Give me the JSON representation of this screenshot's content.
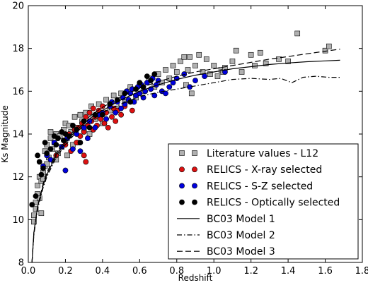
{
  "chart_data": {
    "type": "scatter",
    "xlabel": "Redshift",
    "ylabel": "Ks Magnitude",
    "xlim": [
      0.0,
      1.8
    ],
    "ylim": [
      8,
      20
    ],
    "xticks": [
      "0.0",
      "0.2",
      "0.4",
      "0.6",
      "0.8",
      "1.0",
      "1.2",
      "1.4",
      "1.6",
      "1.8"
    ],
    "yticks": [
      "8",
      "10",
      "12",
      "14",
      "16",
      "18",
      "20"
    ],
    "grid": false,
    "legend_position": "lower-right",
    "series": [
      {
        "name": "Literature values - L12",
        "marker": "square",
        "color": "#b0b0b0",
        "points": [
          [
            0.03,
            10.2
          ],
          [
            0.03,
            9.9
          ],
          [
            0.04,
            10.5
          ],
          [
            0.04,
            10.8
          ],
          [
            0.05,
            11.2
          ],
          [
            0.05,
            11.6
          ],
          [
            0.06,
            11.0
          ],
          [
            0.06,
            12.0
          ],
          [
            0.07,
            10.3
          ],
          [
            0.07,
            11.8
          ],
          [
            0.08,
            12.2
          ],
          [
            0.08,
            11.9
          ],
          [
            0.09,
            12.5
          ],
          [
            0.09,
            13.2
          ],
          [
            0.1,
            12.6
          ],
          [
            0.1,
            13.5
          ],
          [
            0.11,
            12.9
          ],
          [
            0.12,
            13.8
          ],
          [
            0.12,
            14.1
          ],
          [
            0.13,
            13.3
          ],
          [
            0.14,
            13.6
          ],
          [
            0.15,
            12.8
          ],
          [
            0.15,
            14.0
          ],
          [
            0.16,
            13.1
          ],
          [
            0.17,
            13.9
          ],
          [
            0.18,
            13.4
          ],
          [
            0.19,
            14.2
          ],
          [
            0.2,
            13.7
          ],
          [
            0.2,
            14.5
          ],
          [
            0.21,
            13.0
          ],
          [
            0.22,
            14.4
          ],
          [
            0.23,
            14.1
          ],
          [
            0.24,
            13.5
          ],
          [
            0.25,
            14.8
          ],
          [
            0.26,
            14.3
          ],
          [
            0.27,
            13.6
          ],
          [
            0.28,
            14.9
          ],
          [
            0.29,
            14.6
          ],
          [
            0.3,
            14.2
          ],
          [
            0.31,
            15.0
          ],
          [
            0.33,
            14.0
          ],
          [
            0.34,
            15.3
          ],
          [
            0.36,
            14.7
          ],
          [
            0.38,
            15.4
          ],
          [
            0.4,
            14.5
          ],
          [
            0.42,
            15.6
          ],
          [
            0.44,
            15.1
          ],
          [
            0.46,
            15.8
          ],
          [
            0.48,
            15.2
          ],
          [
            0.5,
            15.9
          ],
          [
            0.52,
            15.5
          ],
          [
            0.55,
            16.2
          ],
          [
            0.58,
            15.7
          ],
          [
            0.6,
            16.3
          ],
          [
            0.62,
            16.0
          ],
          [
            0.65,
            16.6
          ],
          [
            0.68,
            16.2
          ],
          [
            0.7,
            16.8
          ],
          [
            0.72,
            16.4
          ],
          [
            0.74,
            17.0
          ],
          [
            0.76,
            16.6
          ],
          [
            0.78,
            17.2
          ],
          [
            0.8,
            16.9
          ],
          [
            0.82,
            17.4
          ],
          [
            0.84,
            17.6
          ],
          [
            0.85,
            16.3
          ],
          [
            0.86,
            17.0
          ],
          [
            0.87,
            17.6
          ],
          [
            0.88,
            15.9
          ],
          [
            0.9,
            17.2
          ],
          [
            0.92,
            17.7
          ],
          [
            0.94,
            16.9
          ],
          [
            0.96,
            17.5
          ],
          [
            0.98,
            16.8
          ],
          [
            1.0,
            17.2
          ],
          [
            1.02,
            16.7
          ],
          [
            1.04,
            17.0
          ],
          [
            1.05,
            16.9
          ],
          [
            1.06,
            17.1
          ],
          [
            1.1,
            17.4
          ],
          [
            1.12,
            17.9
          ],
          [
            1.15,
            16.9
          ],
          [
            1.2,
            17.7
          ],
          [
            1.22,
            17.2
          ],
          [
            1.25,
            17.8
          ],
          [
            1.28,
            17.3
          ],
          [
            1.35,
            17.5
          ],
          [
            1.4,
            17.4
          ],
          [
            1.45,
            18.7
          ],
          [
            1.6,
            17.9
          ],
          [
            1.62,
            18.1
          ]
        ]
      },
      {
        "name": "RELICS - X-ray selected",
        "marker": "circle",
        "color": "#dd1111",
        "points": [
          [
            0.15,
            13.0
          ],
          [
            0.2,
            13.5
          ],
          [
            0.22,
            14.0
          ],
          [
            0.23,
            13.2
          ],
          [
            0.25,
            14.2
          ],
          [
            0.26,
            13.6
          ],
          [
            0.27,
            14.3
          ],
          [
            0.28,
            13.9
          ],
          [
            0.29,
            14.5
          ],
          [
            0.3,
            14.1
          ],
          [
            0.3,
            13.0
          ],
          [
            0.31,
            14.8
          ],
          [
            0.31,
            12.7
          ],
          [
            0.32,
            14.4
          ],
          [
            0.33,
            15.0
          ],
          [
            0.34,
            14.6
          ],
          [
            0.35,
            14.2
          ],
          [
            0.35,
            15.2
          ],
          [
            0.36,
            14.8
          ],
          [
            0.37,
            14.4
          ],
          [
            0.38,
            15.1
          ],
          [
            0.39,
            14.7
          ],
          [
            0.4,
            15.3
          ],
          [
            0.41,
            14.5
          ],
          [
            0.42,
            15.0
          ],
          [
            0.43,
            14.3
          ],
          [
            0.44,
            15.4
          ],
          [
            0.45,
            14.8
          ],
          [
            0.46,
            15.2
          ],
          [
            0.47,
            14.6
          ],
          [
            0.48,
            15.1
          ],
          [
            0.5,
            14.9
          ],
          [
            0.52,
            15.3
          ],
          [
            0.54,
            15.6
          ],
          [
            0.56,
            15.1
          ]
        ]
      },
      {
        "name": "RELICS - S-Z selected",
        "marker": "circle",
        "color": "#0000dd",
        "points": [
          [
            0.08,
            12.5
          ],
          [
            0.1,
            13.0
          ],
          [
            0.12,
            12.8
          ],
          [
            0.14,
            13.6
          ],
          [
            0.18,
            13.4
          ],
          [
            0.2,
            12.3
          ],
          [
            0.21,
            13.8
          ],
          [
            0.24,
            13.3
          ],
          [
            0.26,
            14.0
          ],
          [
            0.28,
            13.2
          ],
          [
            0.3,
            14.3
          ],
          [
            0.32,
            13.8
          ],
          [
            0.33,
            14.6
          ],
          [
            0.36,
            14.3
          ],
          [
            0.38,
            14.9
          ],
          [
            0.4,
            15.0
          ],
          [
            0.42,
            14.7
          ],
          [
            0.44,
            15.3
          ],
          [
            0.45,
            15.5
          ],
          [
            0.47,
            15.0
          ],
          [
            0.48,
            15.5
          ],
          [
            0.5,
            15.2
          ],
          [
            0.51,
            15.7
          ],
          [
            0.52,
            15.4
          ],
          [
            0.53,
            16.0
          ],
          [
            0.54,
            15.6
          ],
          [
            0.55,
            15.9
          ],
          [
            0.56,
            16.1
          ],
          [
            0.57,
            15.5
          ],
          [
            0.58,
            15.8
          ],
          [
            0.59,
            16.2
          ],
          [
            0.6,
            15.9
          ],
          [
            0.61,
            16.3
          ],
          [
            0.62,
            15.7
          ],
          [
            0.63,
            16.0
          ],
          [
            0.64,
            16.4
          ],
          [
            0.66,
            16.1
          ],
          [
            0.67,
            16.6
          ],
          [
            0.68,
            15.8
          ],
          [
            0.69,
            16.3
          ],
          [
            0.7,
            16.5
          ],
          [
            0.72,
            16.0
          ],
          [
            0.74,
            15.9
          ],
          [
            0.76,
            16.2
          ],
          [
            0.78,
            16.4
          ],
          [
            0.8,
            16.6
          ],
          [
            0.84,
            16.8
          ],
          [
            0.87,
            16.2
          ],
          [
            0.9,
            16.5
          ],
          [
            0.95,
            16.7
          ],
          [
            1.06,
            16.9
          ]
        ]
      },
      {
        "name": "RELICS - Optically selected",
        "marker": "circle",
        "color": "#000000",
        "points": [
          [
            0.02,
            10.7
          ],
          [
            0.04,
            11.1
          ],
          [
            0.05,
            13.0
          ],
          [
            0.06,
            12.7
          ],
          [
            0.07,
            12.1
          ],
          [
            0.08,
            12.4
          ],
          [
            0.09,
            13.6
          ],
          [
            0.1,
            13.1
          ],
          [
            0.12,
            13.3
          ],
          [
            0.14,
            13.9
          ],
          [
            0.15,
            13.5
          ],
          [
            0.16,
            13.8
          ],
          [
            0.18,
            14.1
          ],
          [
            0.19,
            13.7
          ],
          [
            0.2,
            14.0
          ],
          [
            0.22,
            13.9
          ],
          [
            0.24,
            14.4
          ],
          [
            0.26,
            14.2
          ],
          [
            0.28,
            13.6
          ],
          [
            0.3,
            14.6
          ],
          [
            0.33,
            14.3
          ],
          [
            0.36,
            14.9
          ],
          [
            0.4,
            14.9
          ],
          [
            0.44,
            15.4
          ],
          [
            0.48,
            15.6
          ],
          [
            0.52,
            15.9
          ],
          [
            0.55,
            15.5
          ],
          [
            0.58,
            16.1
          ],
          [
            0.6,
            16.4
          ],
          [
            0.62,
            16.2
          ],
          [
            0.64,
            16.7
          ],
          [
            0.66,
            16.5
          ],
          [
            0.68,
            16.8
          ]
        ]
      }
    ],
    "lines": [
      {
        "name": "BC03 Model 1",
        "style": "solid",
        "color": "#000000",
        "points": [
          [
            0.02,
            8.0
          ],
          [
            0.03,
            9.4
          ],
          [
            0.05,
            10.6
          ],
          [
            0.08,
            11.6
          ],
          [
            0.1,
            12.1
          ],
          [
            0.15,
            13.0
          ],
          [
            0.2,
            13.6
          ],
          [
            0.25,
            14.1
          ],
          [
            0.3,
            14.5
          ],
          [
            0.35,
            14.85
          ],
          [
            0.4,
            15.1
          ],
          [
            0.5,
            15.6
          ],
          [
            0.6,
            16.0
          ],
          [
            0.7,
            16.3
          ],
          [
            0.8,
            16.55
          ],
          [
            0.9,
            16.75
          ],
          [
            1.0,
            16.9
          ],
          [
            1.1,
            17.05
          ],
          [
            1.2,
            17.15
          ],
          [
            1.3,
            17.25
          ],
          [
            1.4,
            17.32
          ],
          [
            1.5,
            17.38
          ],
          [
            1.6,
            17.42
          ],
          [
            1.68,
            17.45
          ]
        ]
      },
      {
        "name": "BC03 Model 2",
        "style": "dash-dot",
        "color": "#000000",
        "points": [
          [
            0.02,
            8.0
          ],
          [
            0.03,
            9.3
          ],
          [
            0.05,
            10.5
          ],
          [
            0.08,
            11.5
          ],
          [
            0.1,
            12.0
          ],
          [
            0.15,
            12.9
          ],
          [
            0.2,
            13.5
          ],
          [
            0.25,
            14.0
          ],
          [
            0.3,
            14.4
          ],
          [
            0.35,
            14.7
          ],
          [
            0.4,
            15.0
          ],
          [
            0.5,
            15.4
          ],
          [
            0.6,
            15.75
          ],
          [
            0.7,
            15.95
          ],
          [
            0.8,
            16.1
          ],
          [
            0.9,
            16.25
          ],
          [
            1.0,
            16.4
          ],
          [
            1.1,
            16.55
          ],
          [
            1.2,
            16.6
          ],
          [
            1.3,
            16.55
          ],
          [
            1.36,
            16.6
          ],
          [
            1.42,
            16.4
          ],
          [
            1.48,
            16.65
          ],
          [
            1.55,
            16.7
          ],
          [
            1.62,
            16.65
          ],
          [
            1.68,
            16.65
          ]
        ]
      },
      {
        "name": "BC03 Model 3",
        "style": "dashed",
        "color": "#000000",
        "points": [
          [
            0.02,
            8.0
          ],
          [
            0.03,
            9.4
          ],
          [
            0.05,
            10.6
          ],
          [
            0.08,
            11.7
          ],
          [
            0.1,
            12.2
          ],
          [
            0.15,
            13.1
          ],
          [
            0.2,
            13.7
          ],
          [
            0.25,
            14.2
          ],
          [
            0.3,
            14.6
          ],
          [
            0.35,
            14.95
          ],
          [
            0.4,
            15.25
          ],
          [
            0.5,
            15.75
          ],
          [
            0.6,
            16.15
          ],
          [
            0.7,
            16.45
          ],
          [
            0.8,
            16.7
          ],
          [
            0.9,
            16.9
          ],
          [
            1.0,
            17.05
          ],
          [
            1.1,
            17.2
          ],
          [
            1.2,
            17.35
          ],
          [
            1.3,
            17.5
          ],
          [
            1.4,
            17.62
          ],
          [
            1.5,
            17.75
          ],
          [
            1.6,
            17.87
          ],
          [
            1.68,
            17.97
          ]
        ]
      }
    ]
  }
}
